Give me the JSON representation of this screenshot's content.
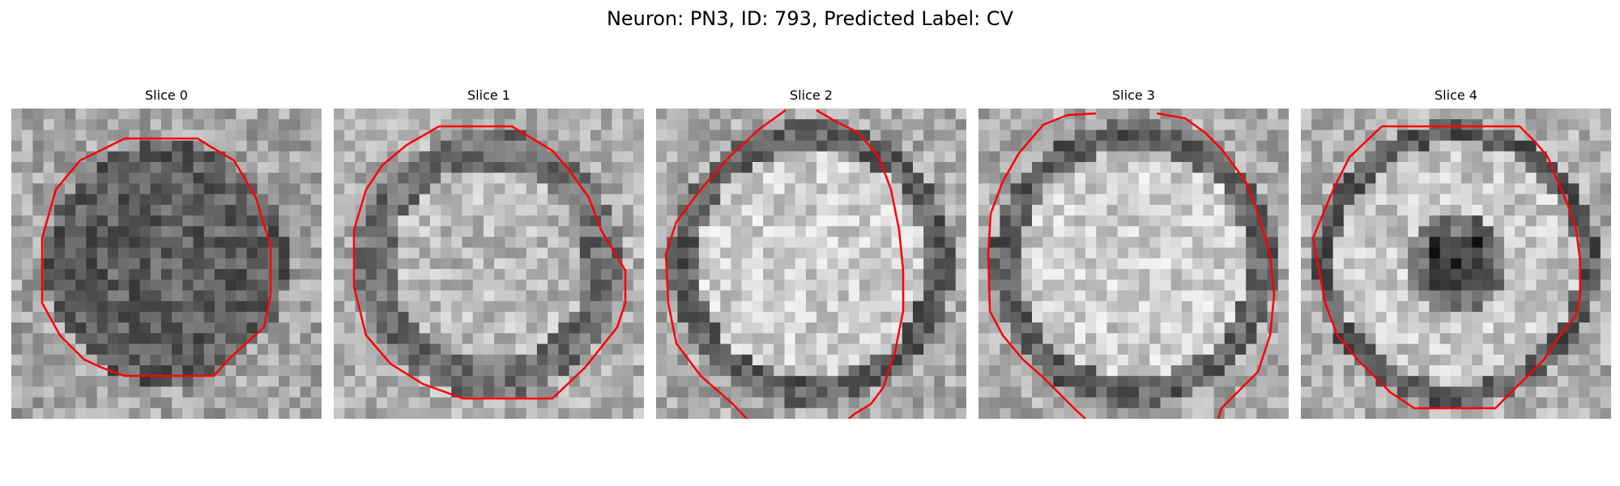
{
  "figure": {
    "suptitle": "Neuron: PN3, ID: 793, Predicted Label: CV",
    "contour_color": "#ff0000"
  },
  "panels": [
    {
      "title": "Slice 0",
      "tone": "dark"
    },
    {
      "title": "Slice 1",
      "tone": "ring"
    },
    {
      "title": "Slice 2",
      "tone": "bright"
    },
    {
      "title": "Slice 3",
      "tone": "bright"
    },
    {
      "title": "Slice 4",
      "tone": "dark-center"
    }
  ]
}
